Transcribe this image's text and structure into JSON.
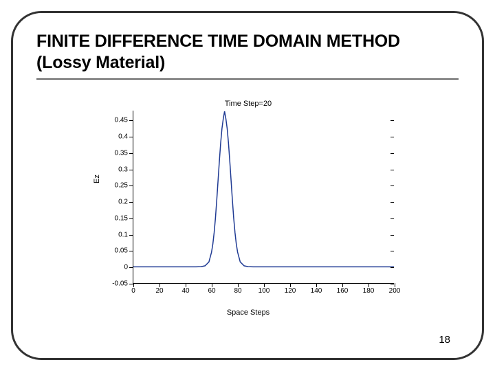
{
  "slide": {
    "title": "FINITE DIFFERENCE TIME DOMAIN METHOD (Lossy Material)",
    "page_number": "18",
    "border_color": "#333333",
    "border_radius": 44,
    "background_color": "#ffffff"
  },
  "chart": {
    "type": "line",
    "title": "Time Step=20",
    "title_fontsize": 11,
    "xlabel": "Space Steps",
    "ylabel": "Ez",
    "label_fontsize": 11,
    "tick_fontsize": 10,
    "xlim": [
      0,
      200
    ],
    "ylim": [
      -0.05,
      0.48
    ],
    "xticks": [
      0,
      20,
      40,
      60,
      80,
      100,
      120,
      140,
      160,
      180,
      200
    ],
    "yticks": [
      -0.05,
      0,
      0.05,
      0.1,
      0.15,
      0.2,
      0.25,
      0.3,
      0.35,
      0.4,
      0.45
    ],
    "ytick_labels": [
      "-0.05",
      "0",
      "0.05",
      "0.1",
      "0.15",
      "0.2",
      "0.25",
      "0.3",
      "0.35",
      "0.4",
      "0.45"
    ],
    "background_color": "#ffffff",
    "axis_color": "#000000",
    "line_color": "#1f3a93",
    "line_width": 1.5,
    "box_right_ticks": true,
    "series": [
      {
        "x": 0,
        "y": 0.0
      },
      {
        "x": 10,
        "y": 0.0
      },
      {
        "x": 20,
        "y": 0.0
      },
      {
        "x": 30,
        "y": 0.0
      },
      {
        "x": 38,
        "y": 0.0
      },
      {
        "x": 43,
        "y": 0.0
      },
      {
        "x": 48,
        "y": 0.0
      },
      {
        "x": 52,
        "y": 0.0005
      },
      {
        "x": 55,
        "y": 0.003
      },
      {
        "x": 58,
        "y": 0.015
      },
      {
        "x": 60,
        "y": 0.045
      },
      {
        "x": 61,
        "y": 0.07
      },
      {
        "x": 62,
        "y": 0.105
      },
      {
        "x": 63,
        "y": 0.15
      },
      {
        "x": 64,
        "y": 0.205
      },
      {
        "x": 65,
        "y": 0.265
      },
      {
        "x": 66,
        "y": 0.325
      },
      {
        "x": 67,
        "y": 0.38
      },
      {
        "x": 68,
        "y": 0.425
      },
      {
        "x": 69,
        "y": 0.455
      },
      {
        "x": 70,
        "y": 0.478
      },
      {
        "x": 71,
        "y": 0.455
      },
      {
        "x": 72,
        "y": 0.425
      },
      {
        "x": 73,
        "y": 0.38
      },
      {
        "x": 74,
        "y": 0.325
      },
      {
        "x": 75,
        "y": 0.265
      },
      {
        "x": 76,
        "y": 0.205
      },
      {
        "x": 77,
        "y": 0.15
      },
      {
        "x": 78,
        "y": 0.105
      },
      {
        "x": 79,
        "y": 0.07
      },
      {
        "x": 80,
        "y": 0.045
      },
      {
        "x": 82,
        "y": 0.015
      },
      {
        "x": 85,
        "y": 0.003
      },
      {
        "x": 88,
        "y": 0.0005
      },
      {
        "x": 92,
        "y": 0.0
      },
      {
        "x": 100,
        "y": 0.0
      },
      {
        "x": 120,
        "y": 0.0
      },
      {
        "x": 140,
        "y": 0.0
      },
      {
        "x": 160,
        "y": 0.0
      },
      {
        "x": 180,
        "y": 0.0
      },
      {
        "x": 200,
        "y": 0.0
      }
    ]
  }
}
